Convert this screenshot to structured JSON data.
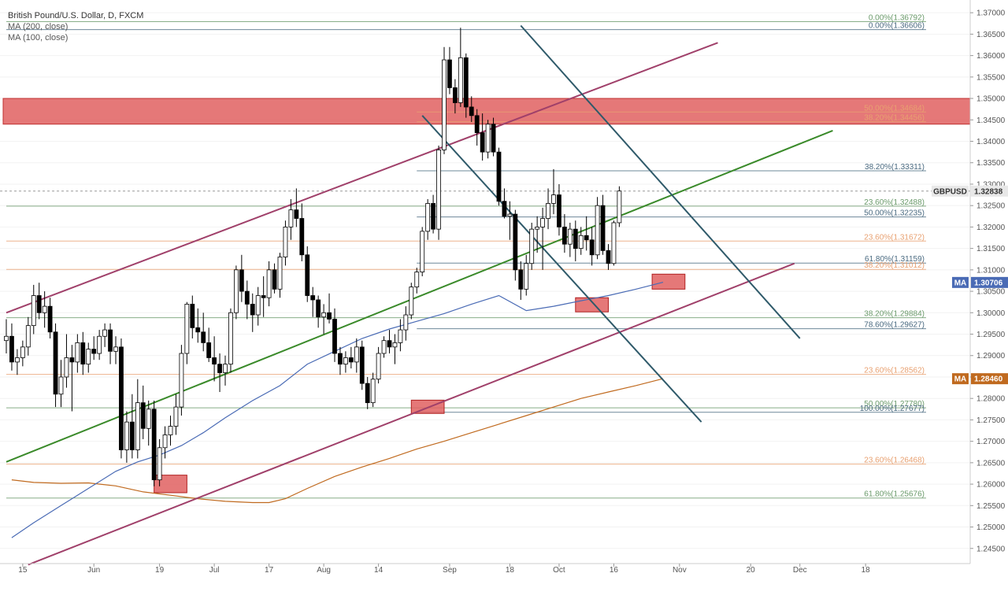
{
  "window": {
    "symbol_title": "British Pound/U.S. Dollar, D, FXCM",
    "legend": [
      "MA (200, close)",
      "MA (100, close)"
    ]
  },
  "colors": {
    "up_candle": "#ffffff",
    "down_candle": "#000000",
    "wick": "#000000",
    "ma200": "#c06a1f",
    "ma100": "#4a6bb5",
    "fib_green": "#6a9a6a",
    "fib_orange": "#e8a070",
    "fib_blue": "#4a6a80",
    "zone_red": "#e06060",
    "channel_purple": "#a0406a",
    "trend_green": "#3a8a2a",
    "down_channel_teal": "#2f5a6a"
  },
  "chart_data": {
    "type": "candlestick",
    "title": "British Pound/U.S. Dollar, D, FXCM",
    "symbol": "GBPUSD",
    "last_price": "1.32838",
    "ylim": [
      1.2422,
      1.3715
    ],
    "y_ticks": [
      "1.37000",
      "1.36500",
      "1.36000",
      "1.35500",
      "1.35000",
      "1.34500",
      "1.34000",
      "1.33500",
      "1.33000",
      "1.32500",
      "1.32000",
      "1.31500",
      "1.31000",
      "1.30500",
      "1.30000",
      "1.29500",
      "1.29000",
      "1.28500",
      "1.28000",
      "1.27500",
      "1.27000",
      "1.26500",
      "1.26000",
      "1.25500",
      "1.25000",
      "1.24500"
    ],
    "x_ticks": [
      {
        "label": "15",
        "bar": 3
      },
      {
        "label": "Jun",
        "bar": 16
      },
      {
        "label": "19",
        "bar": 28
      },
      {
        "label": "Jul",
        "bar": 38
      },
      {
        "label": "17",
        "bar": 48
      },
      {
        "label": "Aug",
        "bar": 58
      },
      {
        "label": "14",
        "bar": 68
      },
      {
        "label": "Sep",
        "bar": 81
      },
      {
        "label": "18",
        "bar": 92
      },
      {
        "label": "Oct",
        "bar": 101
      },
      {
        "label": "16",
        "bar": 111
      },
      {
        "label": "Nov",
        "bar": 123
      },
      {
        "label": "20",
        "bar": 136
      },
      {
        "label": "Dec",
        "bar": 145
      },
      {
        "label": "18",
        "bar": 157
      }
    ],
    "candles": [
      [
        1.2935,
        1.2985,
        1.2905,
        1.2945
      ],
      [
        1.2945,
        1.2975,
        1.2865,
        1.2885
      ],
      [
        1.2885,
        1.2915,
        1.2855,
        1.2895
      ],
      [
        1.2895,
        1.2935,
        1.2875,
        1.292
      ],
      [
        1.292,
        1.299,
        1.29,
        1.297
      ],
      [
        1.297,
        1.3065,
        1.295,
        1.304
      ],
      [
        1.304,
        1.307,
        1.2985,
        1.3
      ],
      [
        1.3,
        1.305,
        1.2965,
        1.3015
      ],
      [
        1.3015,
        1.3035,
        1.294,
        1.2955
      ],
      [
        1.2955,
        1.2975,
        1.278,
        1.281
      ],
      [
        1.281,
        1.289,
        1.278,
        1.285
      ],
      [
        1.285,
        1.295,
        1.2825,
        1.2895
      ],
      [
        1.2895,
        1.2925,
        1.277,
        1.2885
      ],
      [
        1.2885,
        1.295,
        1.286,
        1.293
      ],
      [
        1.293,
        1.2955,
        1.2855,
        1.288
      ],
      [
        1.288,
        1.293,
        1.286,
        1.2915
      ],
      [
        1.2915,
        1.2945,
        1.289,
        1.2905
      ],
      [
        1.2905,
        1.296,
        1.289,
        1.2945
      ],
      [
        1.2945,
        1.2975,
        1.292,
        1.296
      ],
      [
        1.296,
        1.2975,
        1.288,
        1.291
      ],
      [
        1.291,
        1.2945,
        1.288,
        1.292
      ],
      [
        1.292,
        1.294,
        1.266,
        1.268
      ],
      [
        1.268,
        1.277,
        1.265,
        1.2745
      ],
      [
        1.2745,
        1.281,
        1.266,
        1.268
      ],
      [
        1.268,
        1.2845,
        1.266,
        1.279
      ],
      [
        1.279,
        1.283,
        1.2705,
        1.273
      ],
      [
        1.273,
        1.2795,
        1.269,
        1.2775
      ],
      [
        1.2775,
        1.2795,
        1.2595,
        1.261
      ],
      [
        1.261,
        1.2705,
        1.2595,
        1.2685
      ],
      [
        1.2685,
        1.2735,
        1.266,
        1.2715
      ],
      [
        1.2715,
        1.276,
        1.269,
        1.2735
      ],
      [
        1.2735,
        1.281,
        1.2715,
        1.278
      ],
      [
        1.278,
        1.2925,
        1.276,
        1.2905
      ],
      [
        1.2905,
        1.3025,
        1.288,
        1.302
      ],
      [
        1.302,
        1.304,
        1.294,
        1.2965
      ],
      [
        1.2965,
        1.301,
        1.293,
        1.2955
      ],
      [
        1.2955,
        1.3,
        1.291,
        1.293
      ],
      [
        1.293,
        1.2965,
        1.2885,
        1.2895
      ],
      [
        1.2895,
        1.2945,
        1.284,
        1.288
      ],
      [
        1.288,
        1.2905,
        1.2815,
        1.286
      ],
      [
        1.286,
        1.29,
        1.283,
        1.288
      ],
      [
        1.288,
        1.301,
        1.286,
        1.3
      ],
      [
        1.3,
        1.311,
        1.2985,
        1.31
      ],
      [
        1.31,
        1.3135,
        1.3025,
        1.305
      ],
      [
        1.305,
        1.3075,
        1.2985,
        1.302
      ],
      [
        1.302,
        1.3045,
        1.2955,
        1.2995
      ],
      [
        1.2995,
        1.306,
        1.297,
        1.304
      ],
      [
        1.304,
        1.3085,
        1.299,
        1.3035
      ],
      [
        1.3035,
        1.312,
        1.3015,
        1.31
      ],
      [
        1.31,
        1.3115,
        1.3045,
        1.3055
      ],
      [
        1.3055,
        1.314,
        1.3035,
        1.313
      ],
      [
        1.313,
        1.3215,
        1.311,
        1.32
      ],
      [
        1.32,
        1.3265,
        1.317,
        1.324
      ],
      [
        1.324,
        1.329,
        1.32,
        1.322
      ],
      [
        1.322,
        1.3255,
        1.312,
        1.3135
      ],
      [
        1.3135,
        1.3155,
        1.3025,
        1.304
      ],
      [
        1.304,
        1.306,
        1.299,
        1.303
      ],
      [
        1.303,
        1.304,
        1.2965,
        1.299
      ],
      [
        1.299,
        1.302,
        1.295,
        1.3
      ],
      [
        1.3,
        1.3045,
        1.2975,
        1.2985
      ],
      [
        1.2985,
        1.301,
        1.2885,
        1.2905
      ],
      [
        1.2905,
        1.292,
        1.2855,
        1.288
      ],
      [
        1.288,
        1.291,
        1.286,
        1.2895
      ],
      [
        1.2895,
        1.292,
        1.287,
        1.2885
      ],
      [
        1.2885,
        1.294,
        1.286,
        1.292
      ],
      [
        1.292,
        1.2935,
        1.282,
        1.2835
      ],
      [
        1.2835,
        1.285,
        1.2775,
        1.279
      ],
      [
        1.279,
        1.286,
        1.278,
        1.2845
      ],
      [
        1.2845,
        1.292,
        1.2835,
        1.2905
      ],
      [
        1.2905,
        1.2945,
        1.2895,
        1.2935
      ],
      [
        1.2935,
        1.296,
        1.2905,
        1.292
      ],
      [
        1.292,
        1.295,
        1.288,
        1.293
      ],
      [
        1.293,
        1.2985,
        1.291,
        1.296
      ],
      [
        1.296,
        1.3015,
        1.2935,
        1.2995
      ],
      [
        1.2995,
        1.307,
        1.2985,
        1.306
      ],
      [
        1.306,
        1.3105,
        1.3045,
        1.3095
      ],
      [
        1.3095,
        1.32,
        1.3085,
        1.319
      ],
      [
        1.319,
        1.3265,
        1.317,
        1.3255
      ],
      [
        1.3255,
        1.3275,
        1.3185,
        1.3195
      ],
      [
        1.3195,
        1.339,
        1.317,
        1.338
      ],
      [
        1.338,
        1.362,
        1.337,
        1.359
      ],
      [
        1.359,
        1.362,
        1.351,
        1.3525
      ],
      [
        1.3525,
        1.3545,
        1.3465,
        1.349
      ],
      [
        1.349,
        1.3665,
        1.348,
        1.3595
      ],
      [
        1.3595,
        1.3605,
        1.3455,
        1.348
      ],
      [
        1.348,
        1.3505,
        1.3445,
        1.346
      ],
      [
        1.346,
        1.3475,
        1.339,
        1.342
      ],
      [
        1.342,
        1.3465,
        1.3355,
        1.3375
      ],
      [
        1.3375,
        1.345,
        1.336,
        1.344
      ],
      [
        1.344,
        1.3455,
        1.3365,
        1.3375
      ],
      [
        1.3375,
        1.3385,
        1.325,
        1.326
      ],
      [
        1.326,
        1.329,
        1.322,
        1.3225
      ],
      [
        1.3225,
        1.326,
        1.317,
        1.323
      ],
      [
        1.323,
        1.324,
        1.3075,
        1.31
      ],
      [
        1.31,
        1.312,
        1.303,
        1.3055
      ],
      [
        1.3055,
        1.3135,
        1.304,
        1.3115
      ],
      [
        1.3115,
        1.321,
        1.31,
        1.3195
      ],
      [
        1.3195,
        1.3225,
        1.314,
        1.32
      ],
      [
        1.32,
        1.3245,
        1.31,
        1.322
      ],
      [
        1.322,
        1.329,
        1.3195,
        1.3255
      ],
      [
        1.3255,
        1.3335,
        1.323,
        1.3275
      ],
      [
        1.3275,
        1.33,
        1.318,
        1.32
      ],
      [
        1.32,
        1.323,
        1.314,
        1.316
      ],
      [
        1.316,
        1.321,
        1.313,
        1.3195
      ],
      [
        1.3195,
        1.3215,
        1.312,
        1.315
      ],
      [
        1.315,
        1.32,
        1.3135,
        1.318
      ],
      [
        1.318,
        1.3225,
        1.3145,
        1.317
      ],
      [
        1.317,
        1.32,
        1.311,
        1.3135
      ],
      [
        1.3135,
        1.327,
        1.3125,
        1.325
      ],
      [
        1.325,
        1.3275,
        1.3135,
        1.3145
      ],
      [
        1.3145,
        1.316,
        1.31,
        1.3115
      ],
      [
        1.3115,
        1.3215,
        1.311,
        1.321
      ],
      [
        1.321,
        1.3295,
        1.32,
        1.3284
      ]
    ],
    "ma200": [
      [
        1,
        1.261
      ],
      [
        5,
        1.2604
      ],
      [
        10,
        1.2602
      ],
      [
        15,
        1.2603
      ],
      [
        20,
        1.2596
      ],
      [
        25,
        1.2582
      ],
      [
        30,
        1.2574
      ],
      [
        35,
        1.2566
      ],
      [
        40,
        1.256
      ],
      [
        45,
        1.2557
      ],
      [
        48,
        1.2557
      ],
      [
        51,
        1.2566
      ],
      [
        55,
        1.259
      ],
      [
        60,
        1.2618
      ],
      [
        65,
        1.264
      ],
      [
        70,
        1.266
      ],
      [
        75,
        1.2682
      ],
      [
        80,
        1.27
      ],
      [
        85,
        1.272
      ],
      [
        90,
        1.274
      ],
      [
        95,
        1.276
      ],
      [
        100,
        1.278
      ],
      [
        105,
        1.28
      ],
      [
        110,
        1.2815
      ],
      [
        115,
        1.283
      ],
      [
        120,
        1.2846
      ]
    ],
    "ma100": [
      [
        1,
        1.2475
      ],
      [
        5,
        1.251
      ],
      [
        10,
        1.255
      ],
      [
        15,
        1.259
      ],
      [
        20,
        1.263
      ],
      [
        24,
        1.2652
      ],
      [
        28,
        1.2668
      ],
      [
        32,
        1.269
      ],
      [
        36,
        1.272
      ],
      [
        40,
        1.2755
      ],
      [
        45,
        1.2795
      ],
      [
        50,
        1.283
      ],
      [
        55,
        1.288
      ],
      [
        60,
        1.291
      ],
      [
        65,
        1.294
      ],
      [
        70,
        1.2962
      ],
      [
        75,
        1.298
      ],
      [
        80,
        1.2998
      ],
      [
        85,
        1.302
      ],
      [
        90,
        1.304
      ],
      [
        95,
        1.3005
      ],
      [
        100,
        1.3015
      ],
      [
        105,
        1.3028
      ],
      [
        110,
        1.304
      ],
      [
        115,
        1.3055
      ],
      [
        120,
        1.3071
      ]
    ],
    "fib_levels": [
      {
        "label": "0.00%(1.36792)",
        "price": 1.36792,
        "color": "fib_green",
        "x_from_bar": 0
      },
      {
        "label": "0.00%(1.36606)",
        "price": 1.36606,
        "color": "fib_blue",
        "x_from_bar": 0
      },
      {
        "label": "50.00%(1.34684)",
        "price": 1.34684,
        "color": "fib_orange",
        "x_from_bar": 75
      },
      {
        "label": "38.20%(1.34456)",
        "price": 1.34456,
        "color": "fib_orange",
        "x_from_bar": 75
      },
      {
        "label": "38.20%(1.33311)",
        "price": 1.33311,
        "color": "fib_blue",
        "x_from_bar": 75
      },
      {
        "label": "23.60%(1.32488)",
        "price": 1.32488,
        "color": "fib_green",
        "x_from_bar": 0
      },
      {
        "label": "50.00%(1.32235)",
        "price": 1.32235,
        "color": "fib_blue",
        "x_from_bar": 75
      },
      {
        "label": "23.60%(1.31672)",
        "price": 1.31672,
        "color": "fib_orange",
        "x_from_bar": 0
      },
      {
        "label": "61.80%(1.31159)",
        "price": 1.31159,
        "color": "fib_blue",
        "x_from_bar": 75
      },
      {
        "label": "38.20%(1.31012)",
        "price": 1.31012,
        "color": "fib_orange",
        "x_from_bar": 0
      },
      {
        "label": "38.20%(1.29884)",
        "price": 1.29884,
        "color": "fib_green",
        "x_from_bar": 0
      },
      {
        "label": "78.60%(1.29627)",
        "price": 1.29627,
        "color": "fib_blue",
        "x_from_bar": 75
      },
      {
        "label": "23.60%(1.28562)",
        "price": 1.28562,
        "color": "fib_orange",
        "x_from_bar": 0
      },
      {
        "label": "50.00%(1.27780)",
        "price": 1.2778,
        "color": "fib_green",
        "x_from_bar": 0
      },
      {
        "label": "100.00%(1.27677)",
        "price": 1.27677,
        "color": "fib_blue",
        "x_from_bar": 75
      },
      {
        "label": "23.60%(1.26468)",
        "price": 1.26468,
        "color": "fib_orange",
        "x_from_bar": 0
      },
      {
        "label": "61.80%(1.25676)",
        "price": 1.25676,
        "color": "fib_green",
        "x_from_bar": 0
      }
    ],
    "resistance_zone": {
      "top": 1.35,
      "bottom": 1.344
    },
    "support_boxes": [
      {
        "bar_from": 27,
        "bar_to": 33,
        "top": 1.2621,
        "bottom": 1.258
      },
      {
        "bar_from": 74,
        "bar_to": 80,
        "top": 1.2796,
        "bottom": 1.2765
      },
      {
        "bar_from": 104,
        "bar_to": 110,
        "top": 1.3035,
        "bottom": 1.3002
      },
      {
        "bar_from": 118,
        "bar_to": 124,
        "top": 1.309,
        "bottom": 1.3055
      }
    ],
    "trendlines": [
      {
        "name": "upper-channel",
        "color": "channel_purple",
        "from": [
          0,
          1.3
        ],
        "to": [
          130,
          1.363
        ]
      },
      {
        "name": "lower-channel",
        "color": "channel_purple",
        "from": [
          4,
          1.2412
        ],
        "to": [
          144,
          1.3115
        ]
      },
      {
        "name": "green-trend",
        "color": "trend_green",
        "from": [
          0,
          1.2652
        ],
        "to": [
          151,
          1.3425
        ]
      },
      {
        "name": "down-channel-upper",
        "color": "down_channel_teal",
        "from": [
          94,
          1.367
        ],
        "to": [
          145,
          1.294
        ]
      },
      {
        "name": "down-channel-lower",
        "color": "down_channel_teal",
        "from": [
          76,
          1.346
        ],
        "to": [
          127,
          1.2745
        ]
      }
    ],
    "price_tags": [
      {
        "label": "GBPUSD",
        "value": "1.32838",
        "price": 1.32838,
        "style": "symbol"
      },
      {
        "label": "MA",
        "value": "1.30706",
        "price": 1.30706,
        "style": "ma100"
      },
      {
        "label": "MA",
        "value": "1.28460",
        "price": 1.2846,
        "style": "ma200"
      }
    ]
  }
}
